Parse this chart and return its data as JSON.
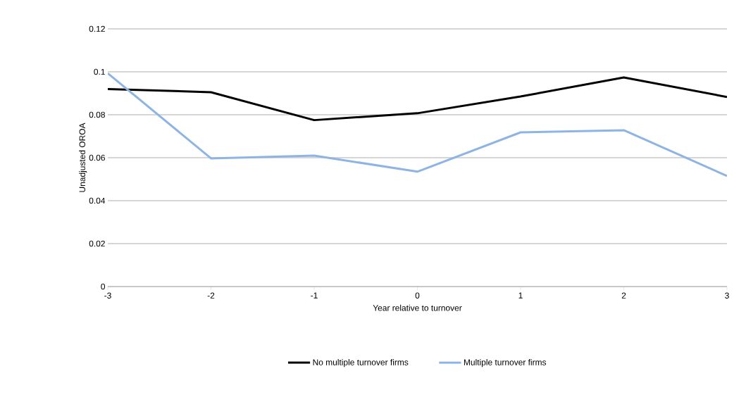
{
  "chart_data": {
    "type": "line",
    "xlabel": "Year relative to turnover",
    "ylabel": "Unadjusted OROA",
    "x": [
      -3,
      -2,
      -1,
      0,
      1,
      2,
      3
    ],
    "series": [
      {
        "name": "No multiple turnover firms",
        "color": "#000000",
        "values": [
          0.092,
          0.0905,
          0.0775,
          0.0807,
          0.0885,
          0.0974,
          0.0883
        ]
      },
      {
        "name": "Multiple turnover firms",
        "color": "#8eb4e3",
        "values": [
          0.0993,
          0.0597,
          0.061,
          0.0535,
          0.0718,
          0.0728,
          0.0515
        ]
      }
    ],
    "xlim": [
      -3,
      3
    ],
    "xticks": [
      -3,
      -2,
      -1,
      0,
      1,
      2,
      3
    ],
    "ylim": [
      0,
      0.12
    ],
    "yticks": [
      0,
      0.02,
      0.04,
      0.06,
      0.08,
      0.1,
      0.12
    ],
    "grid": "y",
    "legend": "bottom",
    "marker": "none",
    "line_style": "solid"
  }
}
